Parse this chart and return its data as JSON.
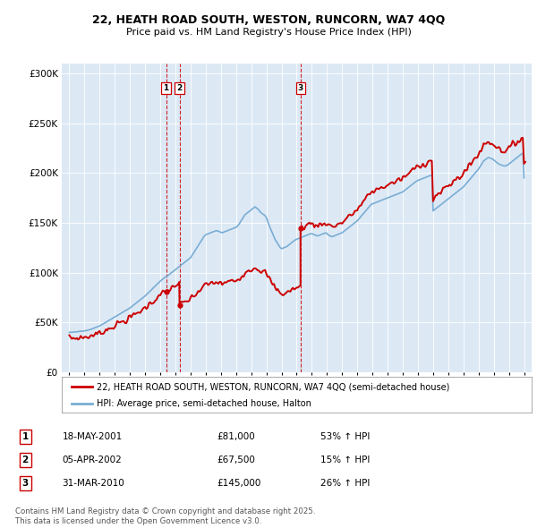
{
  "title": "22, HEATH ROAD SOUTH, WESTON, RUNCORN, WA7 4QQ",
  "subtitle": "Price paid vs. HM Land Registry's House Price Index (HPI)",
  "legend_line1": "22, HEATH ROAD SOUTH, WESTON, RUNCORN, WA7 4QQ (semi-detached house)",
  "legend_line2": "HPI: Average price, semi-detached house, Halton",
  "footer": "Contains HM Land Registry data © Crown copyright and database right 2025.\nThis data is licensed under the Open Government Licence v3.0.",
  "transactions": [
    {
      "num": 1,
      "date": "18-MAY-2001",
      "price": "£81,000",
      "hpi": "53% ↑ HPI",
      "x": 2001.38
    },
    {
      "num": 2,
      "date": "05-APR-2002",
      "price": "£67,500",
      "hpi": "15% ↑ HPI",
      "x": 2002.27
    },
    {
      "num": 3,
      "date": "31-MAR-2010",
      "price": "£145,000",
      "hpi": "26% ↑ HPI",
      "x": 2010.25
    }
  ],
  "price_color": "#cc0000",
  "hpi_color": "#7aadd4",
  "vline_color": "#cc0000",
  "plot_bg": "#dce9f5",
  "ylim": [
    0,
    310000
  ],
  "yticks": [
    0,
    50000,
    100000,
    150000,
    200000,
    250000,
    300000
  ],
  "xlim": [
    1994.5,
    2025.5
  ],
  "hpi_x": [
    1995.0,
    1995.08,
    1995.17,
    1995.25,
    1995.33,
    1995.42,
    1995.5,
    1995.58,
    1995.67,
    1995.75,
    1995.83,
    1995.92,
    1996.0,
    1996.08,
    1996.17,
    1996.25,
    1996.33,
    1996.42,
    1996.5,
    1996.58,
    1996.67,
    1996.75,
    1996.83,
    1996.92,
    1997.0,
    1997.08,
    1997.17,
    1997.25,
    1997.33,
    1997.42,
    1997.5,
    1997.58,
    1997.67,
    1997.75,
    1997.83,
    1997.92,
    1998.0,
    1998.08,
    1998.17,
    1998.25,
    1998.33,
    1998.42,
    1998.5,
    1998.58,
    1998.67,
    1998.75,
    1998.83,
    1998.92,
    1999.0,
    1999.08,
    1999.17,
    1999.25,
    1999.33,
    1999.42,
    1999.5,
    1999.58,
    1999.67,
    1999.75,
    1999.83,
    1999.92,
    2000.0,
    2000.08,
    2000.17,
    2000.25,
    2000.33,
    2000.42,
    2000.5,
    2000.58,
    2000.67,
    2000.75,
    2000.83,
    2000.92,
    2001.0,
    2001.08,
    2001.17,
    2001.25,
    2001.33,
    2001.42,
    2001.5,
    2001.58,
    2001.67,
    2001.75,
    2001.83,
    2001.92,
    2002.0,
    2002.08,
    2002.17,
    2002.25,
    2002.33,
    2002.42,
    2002.5,
    2002.58,
    2002.67,
    2002.75,
    2002.83,
    2002.92,
    2003.0,
    2003.08,
    2003.17,
    2003.25,
    2003.33,
    2003.42,
    2003.5,
    2003.58,
    2003.67,
    2003.75,
    2003.83,
    2003.92,
    2004.0,
    2004.08,
    2004.17,
    2004.25,
    2004.33,
    2004.42,
    2004.5,
    2004.58,
    2004.67,
    2004.75,
    2004.83,
    2004.92,
    2005.0,
    2005.08,
    2005.17,
    2005.25,
    2005.33,
    2005.42,
    2005.5,
    2005.58,
    2005.67,
    2005.75,
    2005.83,
    2005.92,
    2006.0,
    2006.08,
    2006.17,
    2006.25,
    2006.33,
    2006.42,
    2006.5,
    2006.58,
    2006.67,
    2006.75,
    2006.83,
    2006.92,
    2007.0,
    2007.08,
    2007.17,
    2007.25,
    2007.33,
    2007.42,
    2007.5,
    2007.58,
    2007.67,
    2007.75,
    2007.83,
    2007.92,
    2008.0,
    2008.08,
    2008.17,
    2008.25,
    2008.33,
    2008.42,
    2008.5,
    2008.58,
    2008.67,
    2008.75,
    2008.83,
    2008.92,
    2009.0,
    2009.08,
    2009.17,
    2009.25,
    2009.33,
    2009.42,
    2009.5,
    2009.58,
    2009.67,
    2009.75,
    2009.83,
    2009.92,
    2010.0,
    2010.08,
    2010.17,
    2010.25,
    2010.33,
    2010.42,
    2010.5,
    2010.58,
    2010.67,
    2010.75,
    2010.83,
    2010.92,
    2011.0,
    2011.08,
    2011.17,
    2011.25,
    2011.33,
    2011.42,
    2011.5,
    2011.58,
    2011.67,
    2011.75,
    2011.83,
    2011.92,
    2012.0,
    2012.08,
    2012.17,
    2012.25,
    2012.33,
    2012.42,
    2012.5,
    2012.58,
    2012.67,
    2012.75,
    2012.83,
    2012.92,
    2013.0,
    2013.08,
    2013.17,
    2013.25,
    2013.33,
    2013.42,
    2013.5,
    2013.58,
    2013.67,
    2013.75,
    2013.83,
    2013.92,
    2014.0,
    2014.08,
    2014.17,
    2014.25,
    2014.33,
    2014.42,
    2014.5,
    2014.58,
    2014.67,
    2014.75,
    2014.83,
    2014.92,
    2015.0,
    2015.08,
    2015.17,
    2015.25,
    2015.33,
    2015.42,
    2015.5,
    2015.58,
    2015.67,
    2015.75,
    2015.83,
    2015.92,
    2016.0,
    2016.08,
    2016.17,
    2016.25,
    2016.33,
    2016.42,
    2016.5,
    2016.58,
    2016.67,
    2016.75,
    2016.83,
    2016.92,
    2017.0,
    2017.08,
    2017.17,
    2017.25,
    2017.33,
    2017.42,
    2017.5,
    2017.58,
    2017.67,
    2017.75,
    2017.83,
    2017.92,
    2018.0,
    2018.08,
    2018.17,
    2018.25,
    2018.33,
    2018.42,
    2018.5,
    2018.58,
    2018.67,
    2018.75,
    2018.83,
    2018.92,
    2019.0,
    2019.08,
    2019.17,
    2019.25,
    2019.33,
    2019.42,
    2019.5,
    2019.58,
    2019.67,
    2019.75,
    2019.83,
    2019.92,
    2020.0,
    2020.08,
    2020.17,
    2020.25,
    2020.33,
    2020.42,
    2020.5,
    2020.58,
    2020.67,
    2020.75,
    2020.83,
    2020.92,
    2021.0,
    2021.08,
    2021.17,
    2021.25,
    2021.33,
    2021.42,
    2021.5,
    2021.58,
    2021.67,
    2021.75,
    2021.83,
    2021.92,
    2022.0,
    2022.08,
    2022.17,
    2022.25,
    2022.33,
    2022.42,
    2022.5,
    2022.58,
    2022.67,
    2022.75,
    2022.83,
    2022.92,
    2023.0,
    2023.08,
    2023.17,
    2023.25,
    2023.33,
    2023.42,
    2023.5,
    2023.58,
    2023.67,
    2023.75,
    2023.83,
    2023.92,
    2024.0,
    2024.08,
    2024.17,
    2024.25,
    2024.33,
    2024.42,
    2024.5,
    2024.58,
    2024.67,
    2024.75,
    2024.83,
    2024.92,
    2025.0
  ],
  "hpi_y": [
    40000,
    40200,
    40100,
    40300,
    40500,
    40400,
    40600,
    40800,
    41000,
    41200,
    41100,
    41300,
    41500,
    41800,
    42000,
    42300,
    42600,
    43000,
    43500,
    44000,
    44500,
    45000,
    45500,
    46000,
    46500,
    47200,
    48000,
    48800,
    49500,
    50200,
    51000,
    51800,
    52500,
    53200,
    54000,
    54800,
    55500,
    56200,
    57000,
    57800,
    58500,
    59200,
    60000,
    60800,
    61500,
    62200,
    63000,
    63800,
    64500,
    65500,
    66500,
    67500,
    68500,
    69500,
    70500,
    71500,
    72500,
    73500,
    74500,
    75500,
    76500,
    77800,
    79000,
    80200,
    81500,
    82800,
    84000,
    85300,
    86500,
    87800,
    89000,
    90200,
    91500,
    92500,
    93500,
    94500,
    95500,
    96000,
    97000,
    98000,
    99000,
    100000,
    101000,
    102000,
    103000,
    104000,
    105000,
    106000,
    107000,
    108000,
    109000,
    110000,
    111000,
    112000,
    113000,
    114000,
    115000,
    117000,
    119000,
    121000,
    123000,
    125000,
    127000,
    129000,
    131000,
    133000,
    135000,
    137000,
    138000,
    138500,
    139000,
    139500,
    140000,
    140500,
    141000,
    141500,
    142000,
    142000,
    141500,
    141000,
    140500,
    140000,
    140500,
    141000,
    141500,
    142000,
    142500,
    143000,
    143500,
    144000,
    144500,
    145000,
    145500,
    146500,
    148000,
    150000,
    152000,
    154000,
    156000,
    158000,
    159000,
    160000,
    161000,
    162000,
    163000,
    164000,
    165000,
    166000,
    165000,
    164000,
    163000,
    161000,
    160000,
    159000,
    158000,
    157000,
    155000,
    152000,
    148000,
    145000,
    142000,
    139000,
    136000,
    133000,
    131000,
    129000,
    127000,
    125000,
    124000,
    124500,
    125000,
    125500,
    126000,
    127000,
    128000,
    129000,
    130000,
    131000,
    132000,
    133000,
    133500,
    134000,
    134500,
    135000,
    135500,
    136000,
    136500,
    137000,
    137500,
    138000,
    138500,
    139000,
    139000,
    138500,
    138000,
    137500,
    137000,
    137000,
    137500,
    138000,
    138500,
    139000,
    139500,
    140000,
    139000,
    138000,
    137000,
    136500,
    136000,
    136500,
    137000,
    137500,
    138000,
    138500,
    139000,
    139500,
    140000,
    141000,
    142000,
    143000,
    144000,
    145000,
    146000,
    147000,
    148000,
    149000,
    150000,
    151000,
    152000,
    153500,
    155000,
    156500,
    158000,
    159500,
    161000,
    162500,
    164000,
    165500,
    167000,
    168500,
    169000,
    169500,
    170000,
    170500,
    171000,
    171500,
    172000,
    172500,
    173000,
    173500,
    174000,
    174500,
    175000,
    175500,
    176000,
    176500,
    177000,
    177500,
    178000,
    178500,
    179000,
    179500,
    180000,
    180500,
    181000,
    182000,
    183000,
    184000,
    185000,
    186000,
    187000,
    188000,
    189000,
    190000,
    191000,
    192000,
    192500,
    193000,
    193500,
    194000,
    194500,
    195000,
    195500,
    196000,
    196500,
    197000,
    197500,
    198000,
    162000,
    163000,
    164000,
    165000,
    166000,
    167000,
    168000,
    169000,
    170000,
    171000,
    172000,
    173000,
    174000,
    175000,
    176000,
    177000,
    178000,
    179000,
    180000,
    181000,
    182000,
    183000,
    184000,
    185000,
    186000,
    187500,
    189000,
    190500,
    192000,
    193500,
    195000,
    196500,
    198000,
    199500,
    201000,
    202500,
    204000,
    206000,
    208000,
    210000,
    212000,
    213000,
    214000,
    215000,
    215500,
    215000,
    214500,
    214000,
    213000,
    212000,
    211000,
    210000,
    209000,
    208500,
    208000,
    207500,
    207000,
    207000,
    207500,
    208000,
    209000,
    210000,
    211000,
    212000,
    213000,
    214000,
    215000,
    216000,
    217000,
    218000,
    219000,
    220000,
    195000
  ]
}
